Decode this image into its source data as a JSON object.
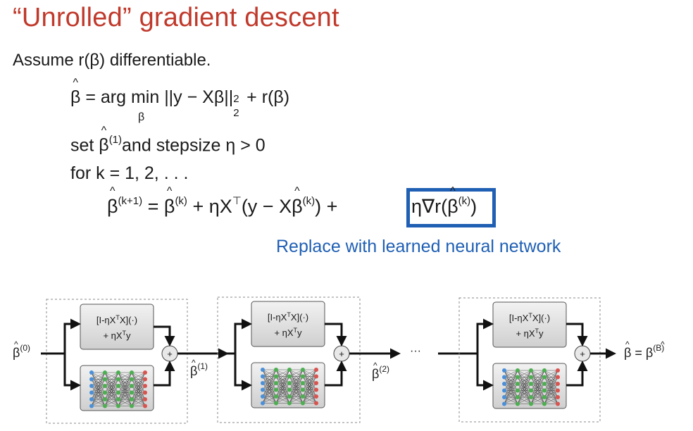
{
  "slide": {
    "title": "“Unrolled” gradient descent",
    "assume_text": "Assume r(β) differentiable.",
    "equation_1": {
      "lhs": "β",
      "rhs": " = arg min ||y − Xβ||",
      "norm_sub": "2",
      "norm_sup": "2",
      "tail": " + r(β)",
      "argmin_subscript": "β"
    },
    "step_1": {
      "prefix": "set ",
      "beta": "β",
      "init_index": "(1)",
      "rest": "and stepsize η > 0"
    },
    "loop_text": "for k = 1, 2, . . .",
    "update": {
      "lhs_beta": "β",
      "lhs_index": "(k+1)",
      "eq": " = ",
      "b1": "β",
      "b1_index": "(k)",
      "mid": " + ηX",
      "transpose": "⊤",
      "paren": "(y − X",
      "b2": "β",
      "b2_index": "(k)",
      "close_plus": ") + ",
      "boxed_prefix": "η∇r(",
      "boxed_beta": "β",
      "boxed_index": "(k)",
      "boxed_suffix": ")"
    },
    "annotation": "Replace with learned neural network",
    "highlight_color": "#1f5fb4",
    "title_color": "#c0392b"
  },
  "diagram": {
    "block_label_line1": "[I-ηX",
    "block_label_sup": "T",
    "block_label_line1_tail": "X](·)",
    "block_label_line2": "+ ηX",
    "block_label_line2_sup": "T",
    "block_label_line2_tail": "y",
    "plus_symbol": "+",
    "input_label": "β",
    "input_index": "(0)",
    "mid_label_1": "β",
    "mid_index_1": "(1)",
    "mid_label_2": "β",
    "mid_index_2": "(2)",
    "ellipsis": "···",
    "output_label": "β = β",
    "output_index": "(B)",
    "nn_node_colors": [
      "#4a90d9",
      "#4caf50",
      "#4caf50",
      "#4caf50",
      "#d9534f"
    ]
  }
}
